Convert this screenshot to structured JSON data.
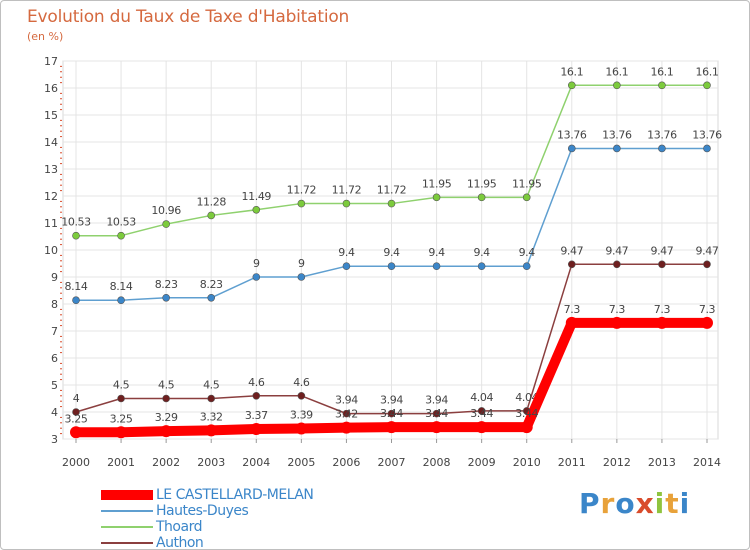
{
  "title": "Evolution du Taux de Taxe d'Habitation",
  "subtitle": "(en %)",
  "chart_data": {
    "type": "line",
    "title": "Evolution du Taux de Taxe d'Habitation",
    "ylabel": "(en %)",
    "xlabel": "",
    "x": [
      2000,
      2001,
      2002,
      2003,
      2004,
      2005,
      2006,
      2007,
      2008,
      2009,
      2010,
      2011,
      2012,
      2013,
      2014
    ],
    "ylim": [
      3,
      17
    ],
    "yticks": [
      3,
      4,
      5,
      6,
      7,
      8,
      9,
      10,
      11,
      12,
      13,
      14,
      15,
      16,
      17
    ],
    "grid": true,
    "legend_position": "bottom-left",
    "series": [
      {
        "name": "Thoard",
        "color": "#8fd16e",
        "marker": "#7ccb3c",
        "values": [
          10.53,
          10.53,
          10.96,
          11.28,
          11.49,
          11.72,
          11.72,
          11.72,
          11.95,
          11.95,
          11.95,
          16.1,
          16.1,
          16.1,
          16.1
        ],
        "labels": [
          "10.53",
          "10.53",
          "10.96",
          "11.28",
          "11.49",
          "11.72",
          "11.72",
          "11.72",
          "11.95",
          "11.95",
          "11.95",
          "16.1",
          "16.1",
          "16.1",
          "16.1"
        ]
      },
      {
        "name": "Hautes-Duyes",
        "color": "#5f9fd0",
        "marker": "#3b86c9",
        "values": [
          8.14,
          8.14,
          8.23,
          8.23,
          9,
          9,
          9.4,
          9.4,
          9.4,
          9.4,
          9.4,
          13.76,
          13.76,
          13.76,
          13.76
        ],
        "labels": [
          "8.14",
          "8.14",
          "8.23",
          "8.23",
          "9",
          "9",
          "9.4",
          "9.4",
          "9.4",
          "9.4",
          "9.4",
          "13.76",
          "13.76",
          "13.76",
          "13.76"
        ]
      },
      {
        "name": "Authon",
        "color": "#8b3f3f",
        "marker": "#6e1f1f",
        "values": [
          4,
          4.5,
          4.5,
          4.5,
          4.6,
          4.6,
          3.94,
          3.94,
          3.94,
          4.04,
          4.04,
          9.47,
          9.47,
          9.47,
          9.47
        ],
        "labels": [
          "4",
          "4.5",
          "4.5",
          "4.5",
          "4.6",
          "4.6",
          "3.94",
          "3.94",
          "3.94",
          "4.04",
          "4.04",
          "9.47",
          "9.47",
          "9.47",
          "9.47"
        ]
      },
      {
        "name": "LE CASTELLARD-MELAN",
        "color": "#ff0000",
        "marker": "#ff0000",
        "values": [
          3.25,
          3.25,
          3.29,
          3.32,
          3.37,
          3.39,
          3.42,
          3.44,
          3.44,
          3.44,
          3.44,
          7.3,
          7.3,
          7.3,
          7.3
        ],
        "labels": [
          "3.25",
          "3.25",
          "3.29",
          "3.32",
          "3.37",
          "3.39",
          "3.42",
          "3.44",
          "3.44",
          "3.44",
          "3.44",
          "7.3",
          "7.3",
          "7.3",
          "7.3"
        ]
      }
    ]
  },
  "legend": [
    {
      "label": "LE CASTELLARD-MELAN",
      "color": "#ff0000"
    },
    {
      "label": "Hautes-Duyes",
      "color": "#5f9fd0"
    },
    {
      "label": "Thoard",
      "color": "#8fd16e"
    },
    {
      "label": "Authon",
      "color": "#8b3f3f"
    }
  ],
  "logo": {
    "text": "Proxiti",
    "letters": [
      "P",
      "r",
      "o",
      "x",
      "i",
      "t",
      "i"
    ],
    "colors": [
      "#3b86c9",
      "#e8a23a",
      "#3b86c9",
      "#d94b2b",
      "#8fc43f",
      "#e8a23a",
      "#3b86c9"
    ]
  }
}
